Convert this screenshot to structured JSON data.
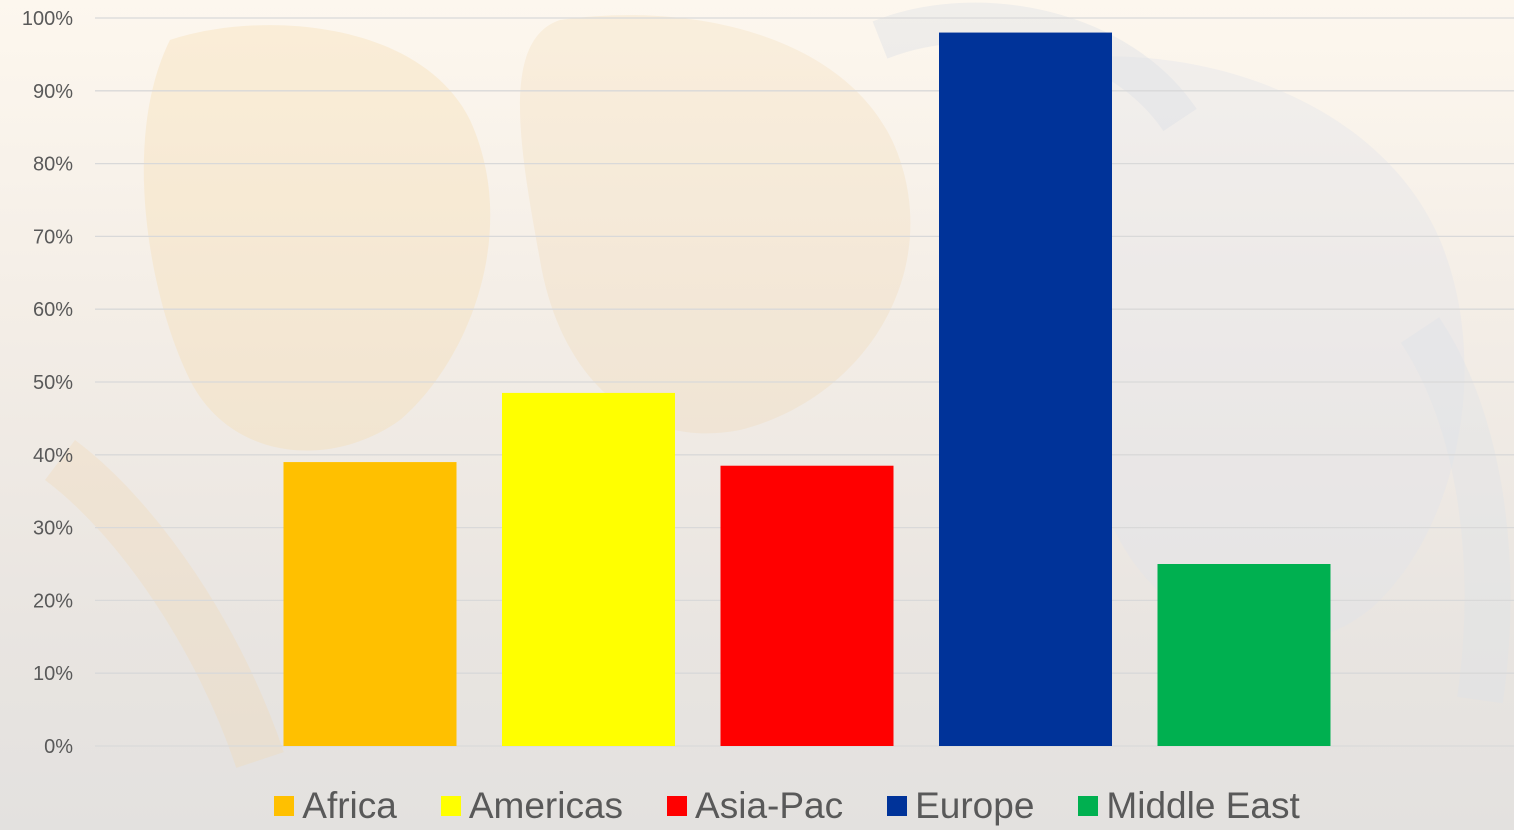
{
  "chart_data": {
    "type": "bar",
    "title": "",
    "xlabel": "",
    "ylabel": "",
    "ylim": [
      0,
      100
    ],
    "y_ticks": [
      "0%",
      "10%",
      "20%",
      "30%",
      "40%",
      "50%",
      "60%",
      "70%",
      "80%",
      "90%",
      "100%"
    ],
    "grid": true,
    "legend_position": "bottom",
    "series": [
      {
        "name": "Africa",
        "value": 39,
        "color": "#FFC000"
      },
      {
        "name": "Americas",
        "value": 48.5,
        "color": "#FFFF00"
      },
      {
        "name": "Asia-Pac",
        "value": 38.5,
        "color": "#FF0000"
      },
      {
        "name": "Europe",
        "value": 98,
        "color": "#003399"
      },
      {
        "name": "Middle East",
        "value": 25,
        "color": "#00B050"
      }
    ]
  }
}
